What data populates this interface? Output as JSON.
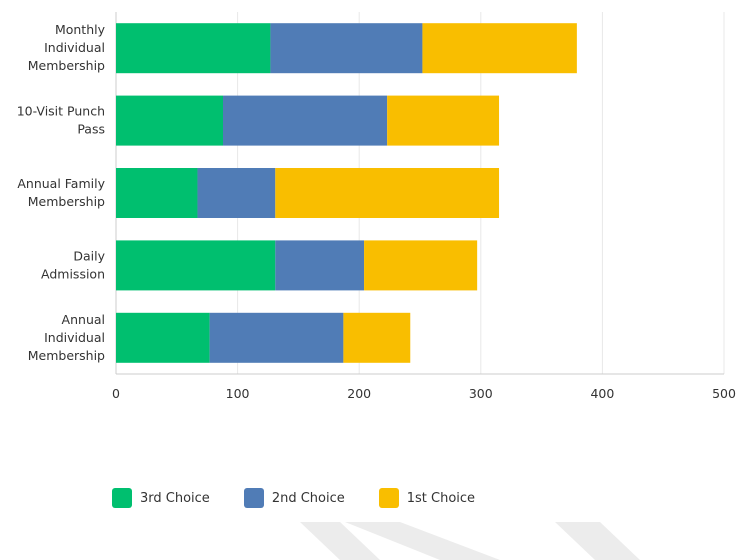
{
  "chart_data": {
    "type": "bar",
    "orientation": "horizontal",
    "stacked": true,
    "categories": [
      "Monthly Individual Membership",
      "10-Visit Punch Pass",
      "Annual Family Membership",
      "Daily Admission",
      "Annual Individual Membership"
    ],
    "category_lines": [
      [
        "Monthly",
        "Individual",
        "Membership"
      ],
      [
        "10-Visit Punch",
        "Pass"
      ],
      [
        "Annual Family",
        "Membership"
      ],
      [
        "Daily",
        "Admission"
      ],
      [
        "Annual",
        "Individual",
        "Membership"
      ]
    ],
    "series": [
      {
        "name": "3rd Choice",
        "color": "#00bf6f",
        "values": [
          127,
          88,
          67,
          131,
          77
        ]
      },
      {
        "name": "2nd Choice",
        "color": "#507cb6",
        "values": [
          125,
          135,
          64,
          73,
          110
        ]
      },
      {
        "name": "1st Choice",
        "color": "#f9be00",
        "values": [
          127,
          92,
          184,
          93,
          55
        ]
      }
    ],
    "xlim": [
      0,
      500
    ],
    "xticks": [
      0,
      100,
      200,
      300,
      400,
      500
    ],
    "grid": true,
    "legend_position": "bottom-left",
    "title": "",
    "xlabel": "",
    "ylabel": ""
  }
}
